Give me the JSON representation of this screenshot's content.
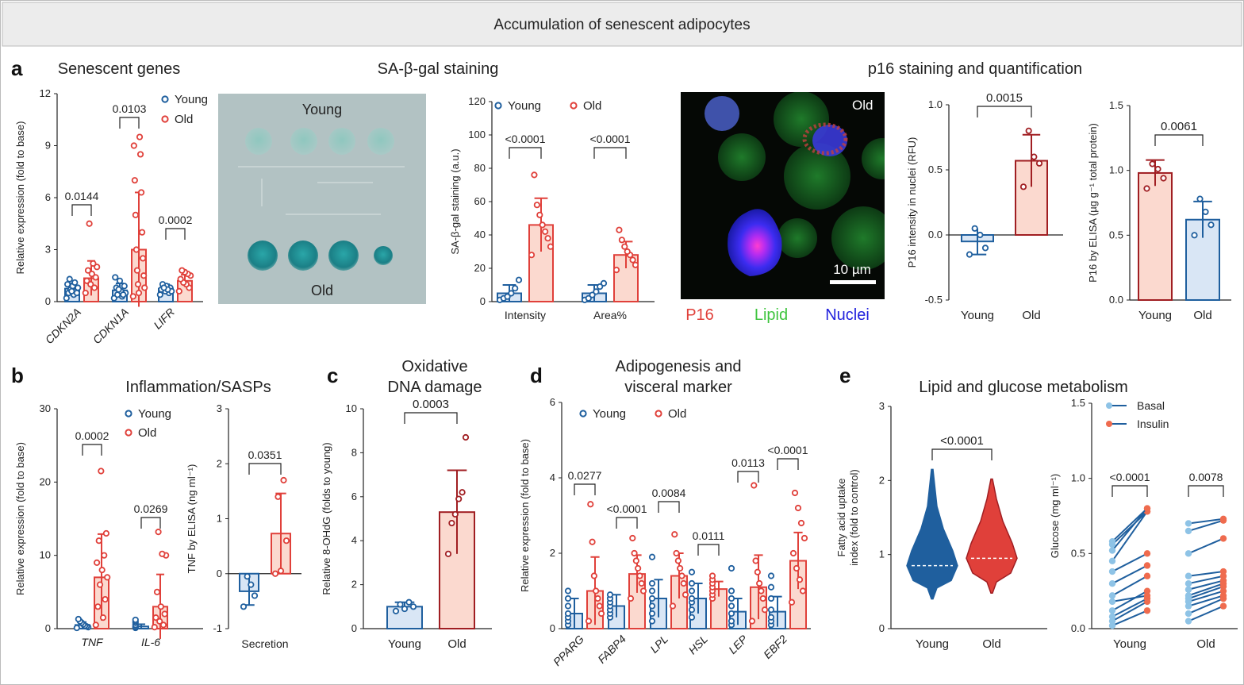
{
  "banner": {
    "title": "Accumulation of senescent adipocytes"
  },
  "panel_letters": {
    "a": "a",
    "b": "b",
    "c": "c",
    "d": "d",
    "e": "e"
  },
  "colors": {
    "blue": "#1f5f9e",
    "red": "#e0403a",
    "blue_fill": "#d9e6f5",
    "red_fill": "#fbd9cf",
    "dark_red": "#a01e22",
    "banner_bg": "#ececec"
  },
  "legend": {
    "young": "Young",
    "old": "Old",
    "basal": "Basal",
    "insulin": "Insulin"
  },
  "images": {
    "sa_gal": {
      "top_label": "Young",
      "bottom_label": "Old"
    },
    "p16": {
      "corner_label": "Old",
      "scale_label": "10 µm",
      "channels": [
        "P16",
        "Lipid",
        "Nuclei"
      ]
    }
  },
  "chart_data": [
    {
      "id": "a1",
      "type": "bar",
      "title": "Senescent genes",
      "ylabel": "Relative expression (fold to base)",
      "ylim": [
        0,
        12
      ],
      "yticks": [
        0,
        3,
        6,
        9,
        12
      ],
      "categories": [
        "CDKN2A",
        "CDKN1A",
        "LIFR"
      ],
      "series": [
        {
          "name": "Young",
          "means": [
            0.75,
            0.65,
            0.75
          ],
          "sd": [
            0.3,
            0.4,
            0.25
          ],
          "points": [
            [
              0.2,
              0.4,
              0.5,
              0.6,
              0.7,
              0.8,
              0.9,
              1.0,
              1.1,
              1.3,
              0.5,
              0.6
            ],
            [
              0.2,
              0.3,
              0.4,
              0.5,
              0.6,
              0.8,
              0.9,
              1.2,
              1.4,
              0.4,
              0.7
            ],
            [
              0.4,
              0.5,
              0.6,
              0.7,
              0.8,
              0.9,
              1.0,
              0.6,
              0.7,
              0.8
            ]
          ]
        },
        {
          "name": "Old",
          "means": [
            1.35,
            3.0,
            1.2
          ],
          "sd": [
            1.0,
            3.3,
            0.35
          ],
          "points": [
            [
              0.5,
              0.8,
              1.0,
              1.2,
              1.4,
              1.6,
              1.8,
              2.0,
              2.2,
              4.5
            ],
            [
              0.3,
              0.5,
              0.8,
              1.0,
              1.5,
              1.8,
              2.5,
              3.0,
              4.0,
              5.0,
              6.3,
              7.0,
              8.5,
              9.0,
              9.5
            ],
            [
              0.6,
              0.8,
              1.0,
              1.1,
              1.3,
              1.5,
              1.6,
              1.7,
              1.8
            ]
          ]
        }
      ],
      "pvalues": [
        "0.0144",
        "0.0103",
        "0.0002"
      ]
    },
    {
      "id": "a2",
      "type": "bar",
      "title": "SA-β-gal staining",
      "ylabel": "SA-β-gal staining (a.u.)",
      "ylim": [
        0,
        120
      ],
      "yticks": [
        0,
        20,
        40,
        60,
        80,
        100,
        120
      ],
      "categories": [
        "Intensity",
        "Area%"
      ],
      "series": [
        {
          "name": "Young",
          "means": [
            5,
            5
          ],
          "sd": [
            5,
            5
          ],
          "points": [
            [
              1,
              2,
              3,
              5,
              8,
              13
            ],
            [
              1,
              2,
              4,
              6,
              9,
              11
            ]
          ]
        },
        {
          "name": "Old",
          "means": [
            46,
            28
          ],
          "sd": [
            16,
            8
          ],
          "points": [
            [
              28,
              33,
              38,
              42,
              46,
              52,
              58,
              76
            ],
            [
              19,
              22,
              25,
              28,
              30,
              33,
              37,
              43
            ]
          ]
        }
      ],
      "pvalues": [
        "<0.0001",
        "<0.0001"
      ]
    },
    {
      "id": "a3",
      "type": "bar",
      "title": "p16 staining and quantification",
      "ylabel": "P16 intensity in nuclei (RFU)",
      "ylim": [
        -0.5,
        1.0
      ],
      "yticks": [
        -0.5,
        0,
        0.5,
        1.0
      ],
      "categories": [
        "Young",
        "Old"
      ],
      "means": [
        -0.05,
        0.57
      ],
      "sd": [
        0.1,
        0.2
      ],
      "points": [
        [
          -0.15,
          -0.1,
          0.0,
          0.05
        ],
        [
          0.37,
          0.55,
          0.6,
          0.8
        ]
      ],
      "pvalue": "0.0015"
    },
    {
      "id": "a4",
      "type": "bar",
      "ylabel": "P16 by ELISA (µg g⁻¹ total protein)",
      "ylim": [
        0,
        1.5
      ],
      "yticks": [
        0,
        0.5,
        1.0,
        1.5
      ],
      "categories": [
        "Young",
        "Old"
      ],
      "means": [
        0.98,
        0.62
      ],
      "sd": [
        0.1,
        0.14
      ],
      "points": [
        [
          0.86,
          0.94,
          1.01,
          1.05
        ],
        [
          0.5,
          0.58,
          0.68,
          0.78
        ]
      ],
      "pvalue": "0.0061"
    },
    {
      "id": "b1",
      "type": "bar",
      "title": "Inflammation/SASPs",
      "ylabel": "Relative expression (fold to base)",
      "ylim": [
        0,
        30
      ],
      "yticks": [
        0,
        10,
        20,
        30
      ],
      "categories": [
        "TNF",
        "IL-6"
      ],
      "series": [
        {
          "name": "Young",
          "means": [
            0.5,
            0.3
          ],
          "sd": [
            0.4,
            0.3
          ],
          "points": [
            [
              0.1,
              0.2,
              0.3,
              0.4,
              0.6,
              0.8,
              1.0,
              1.3
            ],
            [
              0.1,
              0.2,
              0.3,
              0.5,
              0.8,
              1.0,
              1.2
            ]
          ]
        },
        {
          "name": "Old",
          "means": [
            7.0,
            3.0
          ],
          "sd": [
            5.9,
            4.4
          ],
          "points": [
            [
              0.5,
              1.5,
              3,
              4,
              6,
              7,
              8,
              9,
              10,
              12,
              13,
              21.5
            ],
            [
              0.2,
              0.5,
              1,
              1.5,
              2,
              3,
              5,
              10,
              10.2,
              13.2
            ]
          ]
        }
      ],
      "pvalues": [
        "0.0002",
        "0.0269"
      ]
    },
    {
      "id": "b2",
      "type": "bar",
      "ylabel": "TNF by ELISA (ng ml⁻¹)",
      "ylim": [
        -1,
        3
      ],
      "yticks": [
        -1,
        0,
        1,
        2,
        3
      ],
      "categories": [
        "Secretion"
      ],
      "means": [
        -0.32,
        0.73
      ],
      "sd": [
        0.25,
        0.73
      ],
      "points": [
        [
          -0.6,
          -0.4,
          -0.2,
          -0.05
        ],
        [
          0.0,
          0.05,
          0.6,
          1.4,
          1.7
        ]
      ],
      "pvalue": "0.0351"
    },
    {
      "id": "c",
      "type": "bar",
      "title": [
        "Oxidative",
        "DNA damage"
      ],
      "ylabel": "Relative 8-OHdG (folds to young)",
      "ylim": [
        0,
        10
      ],
      "yticks": [
        0,
        2,
        4,
        6,
        8,
        10
      ],
      "categories": [
        "Young",
        "Old"
      ],
      "means": [
        1.0,
        5.3
      ],
      "sd": [
        0.2,
        1.9
      ],
      "points": [
        [
          0.8,
          0.9,
          1.0,
          1.1,
          1.2
        ],
        [
          3.4,
          4.8,
          5.2,
          5.9,
          6.2,
          8.7
        ]
      ],
      "pvalue": "0.0003"
    },
    {
      "id": "d",
      "type": "bar",
      "title": [
        "Adipogenesis and",
        "visceral marker"
      ],
      "ylabel": "Relative expression (fold to base)",
      "ylim": [
        0,
        6
      ],
      "yticks": [
        0,
        2,
        4,
        6
      ],
      "categories": [
        "PPARG",
        "FABP4",
        "LPL",
        "HSL",
        "LEP",
        "EBF2"
      ],
      "series": [
        {
          "name": "Young",
          "means": [
            0.4,
            0.6,
            0.8,
            0.8,
            0.45,
            0.45
          ],
          "sd": [
            0.4,
            0.3,
            0.5,
            0.4,
            0.35,
            0.4
          ],
          "points": [
            [
              0.1,
              0.2,
              0.3,
              0.4,
              0.6,
              0.8,
              1.0
            ],
            [
              0.3,
              0.4,
              0.5,
              0.6,
              0.7,
              0.8,
              0.9
            ],
            [
              0.2,
              0.4,
              0.6,
              0.8,
              1.0,
              1.2,
              1.9
            ],
            [
              0.3,
              0.5,
              0.7,
              0.8,
              1.0,
              1.2,
              1.5
            ],
            [
              0.1,
              0.2,
              0.4,
              0.6,
              0.8,
              1.0,
              1.6
            ],
            [
              0.1,
              0.2,
              0.3,
              0.5,
              0.8,
              1.1,
              1.4
            ]
          ]
        },
        {
          "name": "Old",
          "means": [
            1.0,
            1.45,
            1.4,
            1.05,
            1.1,
            1.8
          ],
          "sd": [
            0.9,
            0.5,
            0.6,
            0.2,
            0.85,
            0.75
          ],
          "points": [
            [
              0.2,
              0.4,
              0.6,
              0.8,
              1.0,
              1.4,
              2.3,
              3.3
            ],
            [
              0.8,
              1.0,
              1.2,
              1.4,
              1.6,
              1.8,
              2.0,
              2.4
            ],
            [
              0.6,
              0.9,
              1.2,
              1.4,
              1.6,
              1.8,
              2.0,
              2.5
            ],
            [
              0.8,
              0.9,
              1.0,
              1.1,
              1.2,
              1.3,
              1.4
            ],
            [
              0.2,
              0.5,
              0.8,
              1.0,
              1.2,
              1.5,
              1.8,
              3.8
            ],
            [
              0.7,
              1.0,
              1.3,
              1.6,
              2.0,
              2.4,
              2.8,
              3.2,
              3.6
            ]
          ]
        }
      ],
      "pvalues": [
        "0.0277",
        "<0.0001",
        "0.0084",
        "0.0111",
        "0.0113",
        "<0.0001"
      ]
    },
    {
      "id": "e1",
      "type": "violin",
      "title": "Lipid and glucose metabolism",
      "ylabel": [
        "Fatty acid uptake",
        "index (fold to control)"
      ],
      "ylim": [
        0,
        3
      ],
      "yticks": [
        0,
        1,
        2,
        3
      ],
      "categories": [
        "Young",
        "Old"
      ],
      "medians": [
        0.85,
        0.95
      ],
      "ranges": [
        [
          0.4,
          2.15
        ],
        [
          0.48,
          2.02
        ]
      ],
      "pvalue": "<0.0001"
    },
    {
      "id": "e2",
      "type": "line",
      "ylabel": "Glucose (mg ml⁻¹)",
      "ylim": [
        0,
        1.5
      ],
      "yticks": [
        0,
        0.5,
        1.0,
        1.5
      ],
      "categories": [
        "Young",
        "Old"
      ],
      "pairs": [
        [
          [
            0.02,
            0.12
          ],
          [
            0.05,
            0.18
          ],
          [
            0.08,
            0.2
          ],
          [
            0.12,
            0.25
          ],
          [
            0.18,
            0.22
          ],
          [
            0.22,
            0.35
          ],
          [
            0.3,
            0.42
          ],
          [
            0.38,
            0.5
          ],
          [
            0.45,
            0.78
          ],
          [
            0.52,
            0.8
          ],
          [
            0.56,
            0.78
          ],
          [
            0.58,
            0.8
          ]
        ],
        [
          [
            0.05,
            0.15
          ],
          [
            0.1,
            0.2
          ],
          [
            0.15,
            0.22
          ],
          [
            0.18,
            0.25
          ],
          [
            0.2,
            0.28
          ],
          [
            0.22,
            0.3
          ],
          [
            0.26,
            0.32
          ],
          [
            0.3,
            0.35
          ],
          [
            0.35,
            0.38
          ],
          [
            0.5,
            0.6
          ],
          [
            0.65,
            0.72
          ],
          [
            0.7,
            0.73
          ]
        ]
      ],
      "pvalues": [
        "<0.0001",
        "0.0078"
      ]
    }
  ]
}
